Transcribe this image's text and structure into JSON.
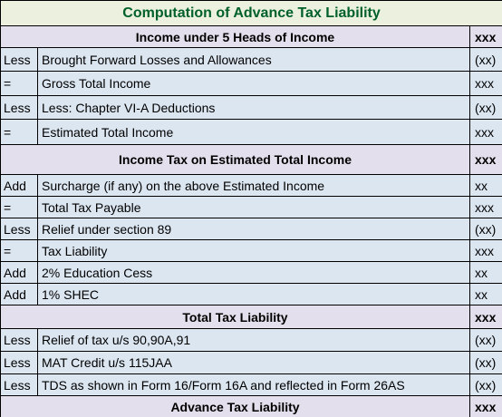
{
  "header": {
    "title": "Computation of Advance Tax Liability"
  },
  "table": {
    "rows": [
      {
        "label": "Income under 5 Heads of Income",
        "amount": "xxx"
      },
      {
        "sign": "Less",
        "item": "Brought Forward Losses and Allowances",
        "amount": "(xx)"
      },
      {
        "sign": "=",
        "item": "Gross Total Income",
        "amount": "xxx"
      },
      {
        "sign": "Less",
        "item": "Less: Chapter VI-A Deductions",
        "amount": "(xx)"
      },
      {
        "sign": "=",
        "item": "Estimated Total Income",
        "amount": "xxx"
      },
      {
        "label": "Income Tax on Estimated Total Income",
        "amount": "xxx"
      },
      {
        "sign": "Add",
        "item": "Surcharge (if any) on the above Estimated Income",
        "amount": "xx"
      },
      {
        "sign": "=",
        "item": "Total Tax Payable",
        "amount": "xxx"
      },
      {
        "sign": "Less",
        "item": "Relief under section 89",
        "amount": "(xx)"
      },
      {
        "sign": "=",
        "item": "Tax Liability",
        "amount": "xxx"
      },
      {
        "sign": "Add",
        "item": "2% Education Cess",
        "amount": "xx"
      },
      {
        "sign": "Add",
        "item": "1% SHEC",
        "amount": "xx"
      },
      {
        "label": "Total Tax Liability",
        "amount": "xxx"
      },
      {
        "sign": "Less",
        "item": "Relief of tax u/s 90,90A,91",
        "amount": "(xx)"
      },
      {
        "sign": "Less",
        "item": "MAT Credit u/s 115JAA",
        "amount": "(xx)"
      },
      {
        "sign": "Less",
        "item": "TDS as shown in Form 16/Form 16A and reflected in Form 26AS",
        "amount": "(xx)"
      },
      {
        "label": "Advance Tax Liability",
        "amount": "xxx"
      }
    ]
  }
}
